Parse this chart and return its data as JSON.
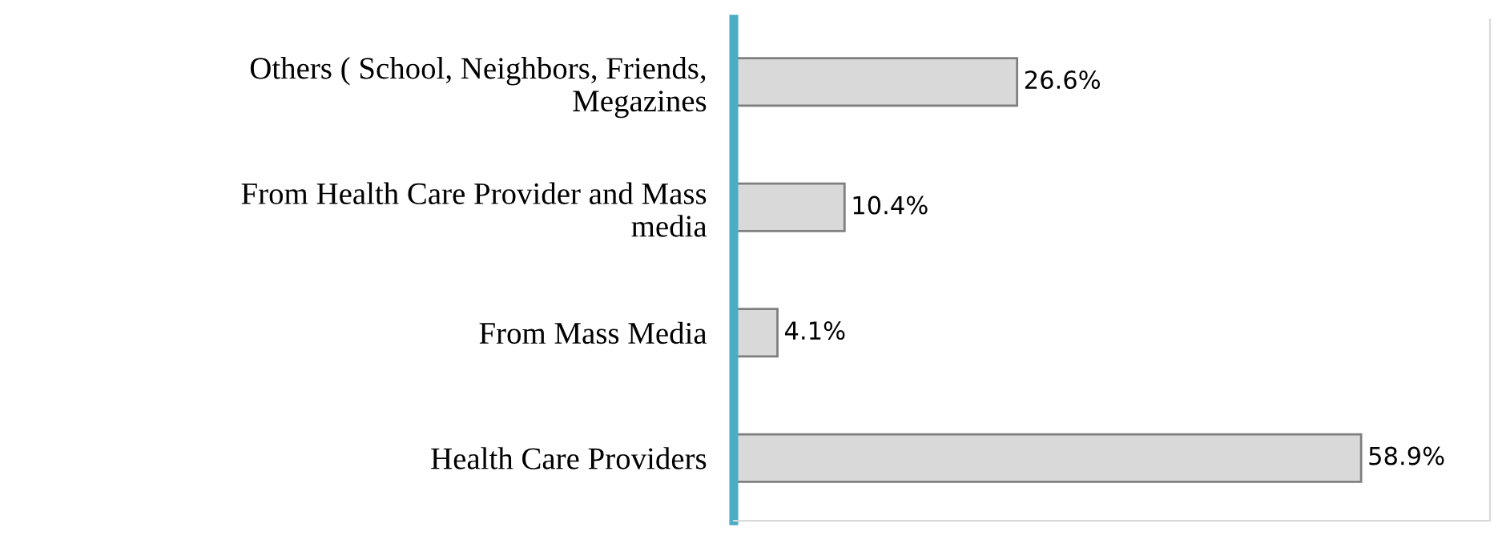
{
  "chart_data": {
    "type": "bar",
    "orientation": "horizontal",
    "categories": [
      "Others ( School, Neighbors, Friends, Megazines",
      "From Health Care Provider and Mass media",
      "From Mass Media",
      "Health Care Providers"
    ],
    "values": [
      26.6,
      10.4,
      4.1,
      58.9
    ],
    "color": "#d9d9d9",
    "value_labels": [
      "26.6%",
      "10.4%",
      "4.1%",
      "58.9%"
    ],
    "xlim": [
      0,
      71
    ],
    "tick_labels": "y",
    "grid": false,
    "legend": false
  }
}
